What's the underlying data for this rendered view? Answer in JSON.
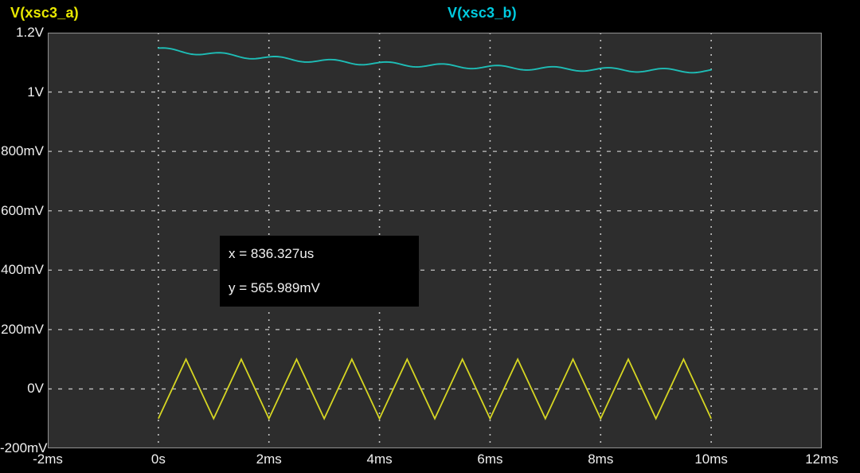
{
  "legend": {
    "series_a": "V(xsc3_a)",
    "series_b": "V(xsc3_b)"
  },
  "cursor_readout": {
    "x_text": "x = 836.327us",
    "y_text": "y = 565.989mV"
  },
  "colors": {
    "window_bg": "#000000",
    "plot_bg": "#2d2d2d",
    "grid": "#c3c3c3",
    "border": "#8c8c8c",
    "axis_text": "#f0f0f0",
    "trace_a": "#d6d622",
    "trace_b": "#1ebdb6",
    "label_a": "#e8e800",
    "label_b": "#00cbe0"
  },
  "chart_data": {
    "type": "line",
    "title": "",
    "xlabel": "",
    "ylabel": "",
    "x_axis": {
      "range_ms": [
        -2,
        12
      ],
      "tick_step_ms": 2,
      "ticks": [
        "-2ms",
        "0s",
        "2ms",
        "4ms",
        "6ms",
        "8ms",
        "10ms",
        "12ms"
      ],
      "grid": true
    },
    "y_axis": {
      "range_mV": [
        -200,
        1200
      ],
      "tick_step_mV": 200,
      "ticks": [
        "1.2V",
        "1V",
        "800mV",
        "600mV",
        "400mV",
        "200mV",
        "0V",
        "-200mV"
      ],
      "grid": true
    },
    "series": [
      {
        "name": "V(xsc3_a)",
        "waveform": "triangle",
        "t_start_ms": 0,
        "t_end_ms": 10,
        "period_ms": 1,
        "min_mV": -100,
        "max_mV": 100,
        "starts_at": "min",
        "peaks_at_ms": [
          0.5,
          1.5,
          2.5,
          3.5,
          4.5,
          5.5,
          6.5,
          7.5,
          8.5,
          9.5
        ]
      },
      {
        "name": "V(xsc3_b)",
        "waveform": "exp_decay_with_ripple",
        "t_start_ms": 0,
        "t_end_ms": 10,
        "v_initial_mV": 1145,
        "v_final_mV": 1074,
        "v_steady_mV": 1062,
        "decay_amp_mV": 82,
        "tau_ms": 4.5,
        "ripple_amp_mV": 6.5,
        "ripple_period_ms": 1,
        "ripple_phase_ms": 0.1
      }
    ]
  }
}
